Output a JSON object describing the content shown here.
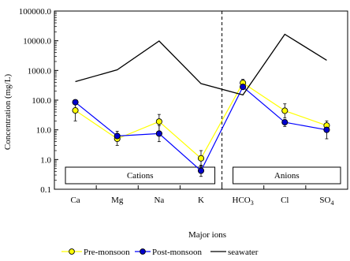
{
  "chart_data": {
    "type": "line",
    "xlabel": "Major ions",
    "ylabel": "Concentration (mg/L)",
    "y_scale": "log",
    "ylim": [
      0.1,
      100000
    ],
    "y_ticks": [
      "0.1",
      "1.0",
      "10.0",
      "100.0",
      "1000.0",
      "10000.0",
      "100000.0"
    ],
    "grid": false,
    "legend_position": "bottom",
    "categories": [
      "Ca",
      "Mg",
      "Na",
      "K",
      "HCO3",
      "Cl",
      "SO4"
    ],
    "category_labels": [
      {
        "base": "Ca",
        "sub": ""
      },
      {
        "base": "Mg",
        "sub": ""
      },
      {
        "base": "Na",
        "sub": ""
      },
      {
        "base": "K",
        "sub": ""
      },
      {
        "base": "HCO",
        "sub": "3"
      },
      {
        "base": "Cl",
        "sub": ""
      },
      {
        "base": "SO",
        "sub": "4"
      }
    ],
    "group_boxes": [
      {
        "label": "Cations",
        "from": "Ca",
        "to": "K"
      },
      {
        "label": "Anions",
        "from": "HCO3",
        "to": "SO4"
      }
    ],
    "divider_between": [
      "K",
      "HCO3"
    ],
    "series": [
      {
        "name": "Pre-monsoon",
        "marker": "circle",
        "fill": "#ffff00",
        "line": "#ffff00",
        "values": [
          45,
          5,
          19,
          1.1,
          380,
          44,
          14
        ],
        "err_low": [
          20,
          3,
          7,
          0.6,
          260,
          25,
          10
        ],
        "err_high": [
          75,
          7,
          33,
          2.0,
          500,
          75,
          20
        ]
      },
      {
        "name": "Post-monsoon",
        "marker": "circle",
        "fill": "#0000cc",
        "line": "#0000ff",
        "values": [
          85,
          6.2,
          7.5,
          0.42,
          280,
          18,
          10
        ],
        "err_low": [
          80,
          4.5,
          4,
          0.27,
          230,
          13,
          5
        ],
        "err_high": [
          95,
          9,
          14,
          0.65,
          330,
          22,
          14
        ]
      },
      {
        "name": "seawater",
        "marker": "none",
        "fill": "none",
        "line": "#000000",
        "values": [
          420,
          1050,
          9800,
          360,
          150,
          16500,
          2200
        ]
      }
    ]
  }
}
